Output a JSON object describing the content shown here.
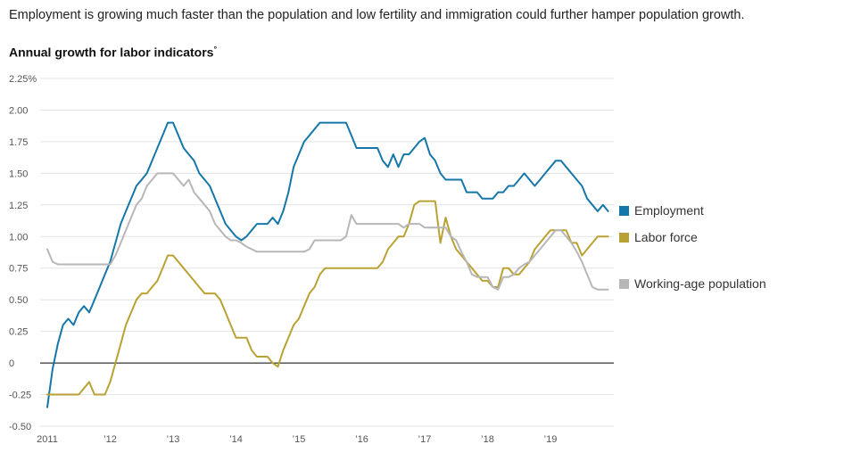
{
  "headline": "Employment is growing much faster than the population and low fertility and immigration could further hamper population growth.",
  "chart": {
    "title": "Annual growth for labor indicators",
    "footnote_mark": "°"
  },
  "chart_data": {
    "type": "line",
    "title": "Annual growth for labor indicators",
    "x_unit": "month",
    "x_start": "2011-01",
    "x_end": "2019-12",
    "x_tick_labels": [
      "2011",
      "’12",
      "’13",
      "’14",
      "’15",
      "’16",
      "’17",
      "’18",
      "’19"
    ],
    "y_ticks": [
      2.25,
      2.0,
      1.75,
      1.5,
      1.25,
      1.0,
      0.75,
      0.5,
      0.25,
      0,
      -0.25,
      -0.5
    ],
    "y_tick_labels": [
      "2.25%",
      "2.00",
      "1.75",
      "1.50",
      "1.25",
      "1.00",
      "0.75",
      "0.50",
      "0.25",
      "0",
      "-0.25",
      "-0.50"
    ],
    "ylim": [
      -0.5,
      2.25
    ],
    "grid": true,
    "legend_position": "right",
    "colors": {
      "employment": "#1577a9",
      "labor_force": "#b9a233",
      "working_age_population": "#b7b7b7",
      "gridline": "#e3e3e3",
      "zero_line": "#000000",
      "axis_text": "#555555"
    },
    "series": [
      {
        "name": "Employment",
        "color": "#1577a9",
        "values": [
          -0.35,
          -0.05,
          0.15,
          0.3,
          0.35,
          0.3,
          0.4,
          0.45,
          0.4,
          0.5,
          0.6,
          0.7,
          0.8,
          0.95,
          1.1,
          1.2,
          1.3,
          1.4,
          1.45,
          1.5,
          1.6,
          1.7,
          1.8,
          1.9,
          1.9,
          1.8,
          1.7,
          1.65,
          1.6,
          1.5,
          1.45,
          1.4,
          1.3,
          1.2,
          1.1,
          1.05,
          1.0,
          0.97,
          1.0,
          1.05,
          1.1,
          1.1,
          1.1,
          1.15,
          1.1,
          1.2,
          1.35,
          1.55,
          1.65,
          1.75,
          1.8,
          1.85,
          1.9,
          1.9,
          1.9,
          1.9,
          1.9,
          1.9,
          1.8,
          1.7,
          1.7,
          1.7,
          1.7,
          1.7,
          1.6,
          1.55,
          1.65,
          1.55,
          1.65,
          1.65,
          1.7,
          1.75,
          1.78,
          1.65,
          1.6,
          1.5,
          1.45,
          1.45,
          1.45,
          1.45,
          1.35,
          1.35,
          1.35,
          1.3,
          1.3,
          1.3,
          1.35,
          1.35,
          1.4,
          1.4,
          1.45,
          1.5,
          1.45,
          1.4,
          1.45,
          1.5,
          1.55,
          1.6,
          1.6,
          1.55,
          1.5,
          1.45,
          1.4,
          1.3,
          1.25,
          1.2,
          1.25,
          1.2
        ]
      },
      {
        "name": "Labor force",
        "color": "#b9a233",
        "values": [
          -0.25,
          -0.25,
          -0.25,
          -0.25,
          -0.25,
          -0.25,
          -0.25,
          -0.2,
          -0.15,
          -0.25,
          -0.25,
          -0.25,
          -0.15,
          0.0,
          0.15,
          0.3,
          0.4,
          0.5,
          0.55,
          0.55,
          0.6,
          0.65,
          0.75,
          0.85,
          0.85,
          0.8,
          0.75,
          0.7,
          0.65,
          0.6,
          0.55,
          0.55,
          0.55,
          0.5,
          0.4,
          0.3,
          0.2,
          0.2,
          0.2,
          0.1,
          0.05,
          0.05,
          0.05,
          0.0,
          -0.03,
          0.1,
          0.2,
          0.3,
          0.35,
          0.45,
          0.55,
          0.6,
          0.7,
          0.75,
          0.75,
          0.75,
          0.75,
          0.75,
          0.75,
          0.75,
          0.75,
          0.75,
          0.75,
          0.75,
          0.8,
          0.9,
          0.95,
          1.0,
          1.0,
          1.1,
          1.25,
          1.28,
          1.28,
          1.28,
          1.28,
          0.95,
          1.15,
          1.0,
          0.9,
          0.85,
          0.8,
          0.75,
          0.7,
          0.65,
          0.65,
          0.6,
          0.6,
          0.75,
          0.75,
          0.7,
          0.7,
          0.75,
          0.8,
          0.9,
          0.95,
          1.0,
          1.05,
          1.05,
          1.05,
          1.05,
          0.95,
          0.95,
          0.85,
          0.9,
          0.95,
          1.0,
          1.0,
          1.0
        ]
      },
      {
        "name": "Working-age population",
        "color": "#b7b7b7",
        "values": [
          0.9,
          0.8,
          0.78,
          0.78,
          0.78,
          0.78,
          0.78,
          0.78,
          0.78,
          0.78,
          0.78,
          0.78,
          0.78,
          0.85,
          0.95,
          1.05,
          1.15,
          1.25,
          1.3,
          1.4,
          1.45,
          1.5,
          1.5,
          1.5,
          1.5,
          1.45,
          1.4,
          1.45,
          1.35,
          1.3,
          1.25,
          1.2,
          1.1,
          1.05,
          1.0,
          0.97,
          0.97,
          0.95,
          0.92,
          0.9,
          0.88,
          0.88,
          0.88,
          0.88,
          0.88,
          0.88,
          0.88,
          0.88,
          0.88,
          0.88,
          0.9,
          0.97,
          0.97,
          0.97,
          0.97,
          0.97,
          0.97,
          1.0,
          1.17,
          1.1,
          1.1,
          1.1,
          1.1,
          1.1,
          1.1,
          1.1,
          1.1,
          1.1,
          1.07,
          1.1,
          1.1,
          1.1,
          1.07,
          1.07,
          1.07,
          1.07,
          1.07,
          1.0,
          0.97,
          0.88,
          0.8,
          0.7,
          0.68,
          0.68,
          0.68,
          0.6,
          0.58,
          0.68,
          0.68,
          0.7,
          0.75,
          0.78,
          0.8,
          0.85,
          0.9,
          0.95,
          1.0,
          1.05,
          1.05,
          1.0,
          0.95,
          0.88,
          0.8,
          0.7,
          0.6,
          0.58,
          0.58,
          0.58
        ]
      }
    ]
  },
  "legend": {
    "items": [
      "Employment",
      "Labor force",
      "Working-age population"
    ]
  }
}
